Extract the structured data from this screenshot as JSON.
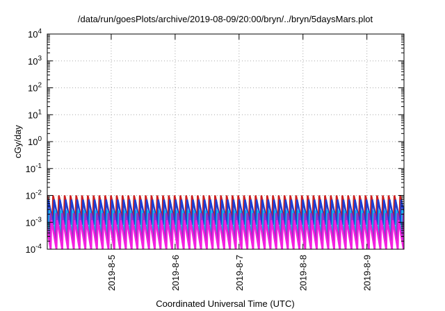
{
  "chart_data": {
    "type": "line",
    "title": "/data/run/goesPlots/archive/2019-08-09/20:00/bryn/../bryn/5daysMars.plot",
    "xlabel": "Coordinated Universal Time (UTC)",
    "ylabel": "cGy/day",
    "y_scale": "log",
    "grid": true,
    "grid_style": "dotted",
    "legend": "none",
    "xlim_days": [
      0,
      5.58
    ],
    "ylim": [
      0.0001,
      10000
    ],
    "x_ticks": [
      {
        "label": "2019-8-5",
        "day": 1.0
      },
      {
        "label": "2019-8-6",
        "day": 2.0
      },
      {
        "label": "2019-8-7",
        "day": 3.0
      },
      {
        "label": "2019-8-8",
        "day": 4.0
      },
      {
        "label": "2019-8-9",
        "day": 5.0
      }
    ],
    "y_ticks": [
      {
        "value": 0.0001,
        "base": "10",
        "exp": "-4"
      },
      {
        "value": 0.001,
        "base": "10",
        "exp": "-3"
      },
      {
        "value": 0.01,
        "base": "10",
        "exp": "-2"
      },
      {
        "value": 0.1,
        "base": "10",
        "exp": "-1"
      },
      {
        "value": 1,
        "base": "10",
        "exp": "0"
      },
      {
        "value": 10,
        "base": "10",
        "exp": "1"
      },
      {
        "value": 100,
        "base": "10",
        "exp": "2"
      },
      {
        "value": 1000,
        "base": "10",
        "exp": "3"
      },
      {
        "value": 10000,
        "base": "10",
        "exp": "4"
      }
    ],
    "cycle_days": 0.0905,
    "series": [
      {
        "color": "#cc1f1f",
        "peak": 0.01,
        "trough": 0.00135,
        "phase": 0.0
      },
      {
        "color": "#1a3fd6",
        "peak": 0.007,
        "trough": 0.0008,
        "phase": 0.18
      },
      {
        "color": "#18b4e8",
        "peak": 0.0028,
        "trough": 0.0004,
        "phase": 0.36
      },
      {
        "color": "#9b2fc4",
        "peak": 0.0022,
        "trough": 0.0002,
        "phase": 0.55
      },
      {
        "color": "#f41fe0",
        "peak": 0.0012,
        "trough": 9e-05,
        "phase": 0.72
      }
    ]
  }
}
